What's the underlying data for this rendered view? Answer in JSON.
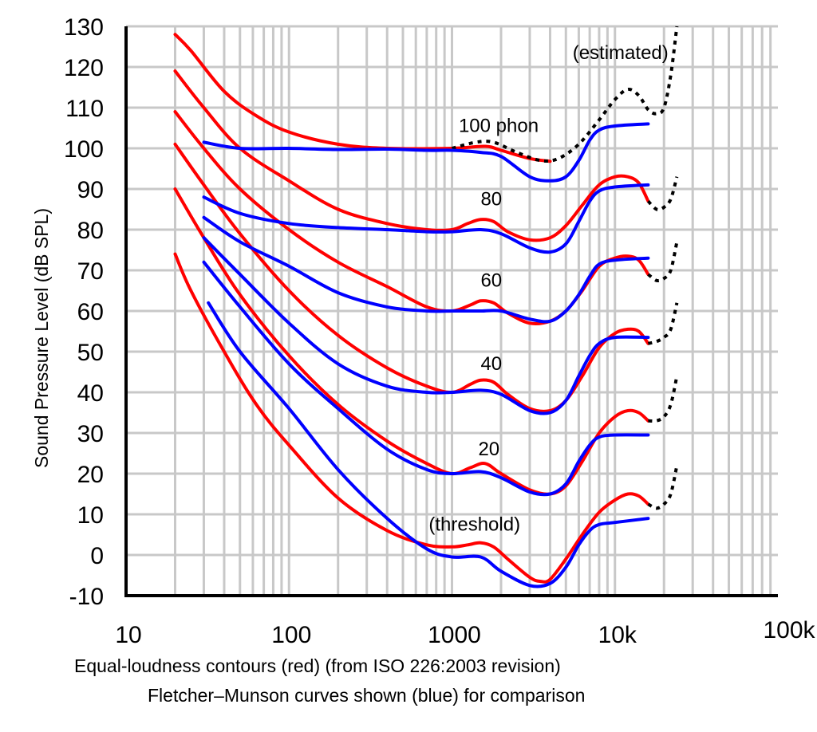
{
  "chart_data": {
    "type": "line",
    "xscale": "log",
    "xlim": [
      10,
      100000
    ],
    "ylim": [
      -10,
      130
    ],
    "grid": true,
    "ylabel": "Sound Pressure Level (dB SPL)",
    "caption_line1": "Equal-loudness contours (red) (from ISO 226:2003 revision)",
    "caption_line2": "Fletcher–Munson curves shown (blue) for comparison",
    "x_tick_labels": [
      {
        "value": 10,
        "label": "10"
      },
      {
        "value": 100,
        "label": "100"
      },
      {
        "value": 1000,
        "label": "1000"
      },
      {
        "value": 10000,
        "label": "10k"
      },
      {
        "value": 100000,
        "label": "100k"
      }
    ],
    "y_tick_labels": [
      {
        "value": 130,
        "label": "130"
      },
      {
        "value": 120,
        "label": "120"
      },
      {
        "value": 110,
        "label": "110"
      },
      {
        "value": 100,
        "label": "100"
      },
      {
        "value": 90,
        "label": "90"
      },
      {
        "value": 80,
        "label": "80"
      },
      {
        "value": 70,
        "label": "70"
      },
      {
        "value": 60,
        "label": "60"
      },
      {
        "value": 50,
        "label": "50"
      },
      {
        "value": 40,
        "label": "40"
      },
      {
        "value": 30,
        "label": "30"
      },
      {
        "value": 20,
        "label": "20"
      },
      {
        "value": 10,
        "label": "10"
      },
      {
        "value": 0,
        "label": "0"
      },
      {
        "value": -10,
        "label": "-10"
      }
    ],
    "annotations": [
      {
        "text": "(estimated)",
        "x": 5500,
        "y": 122
      },
      {
        "text": "100 phon",
        "x": 1100,
        "y": 104
      },
      {
        "text": "80",
        "x": 1500,
        "y": 86
      },
      {
        "text": "60",
        "x": 1500,
        "y": 66
      },
      {
        "text": "40",
        "x": 1500,
        "y": 45.5
      },
      {
        "text": "20",
        "x": 1450,
        "y": 24.5
      },
      {
        "text": "(threshold)",
        "x": 720,
        "y": 6
      }
    ],
    "colors": {
      "iso": "#ff0000",
      "fletcher": "#0000ff",
      "estimated": "#000000"
    },
    "series": [
      {
        "group": "iso",
        "level": 100,
        "points": [
          [
            20,
            128
          ],
          [
            25,
            124
          ],
          [
            40,
            114
          ],
          [
            63,
            108
          ],
          [
            100,
            104
          ],
          [
            200,
            101
          ],
          [
            400,
            100
          ],
          [
            1000,
            100
          ],
          [
            1600,
            100.5
          ],
          [
            2000,
            99.5
          ],
          [
            3000,
            97.5
          ],
          [
            4000,
            96.8
          ]
        ]
      },
      {
        "group": "estimated",
        "level": 100,
        "points": [
          [
            1000,
            100
          ],
          [
            1400,
            101.5
          ],
          [
            1800,
            101.5
          ],
          [
            2500,
            99
          ],
          [
            3500,
            97
          ],
          [
            4500,
            97.5
          ],
          [
            6000,
            101
          ],
          [
            8000,
            107
          ],
          [
            10000,
            112
          ],
          [
            12000,
            114.5
          ],
          [
            14000,
            113
          ],
          [
            16000,
            109.5
          ],
          [
            18000,
            108.5
          ],
          [
            20000,
            110
          ],
          [
            22000,
            118
          ],
          [
            24000,
            130
          ]
        ]
      },
      {
        "group": "iso",
        "level": 80,
        "points": [
          [
            20,
            119
          ],
          [
            30,
            110
          ],
          [
            50,
            100
          ],
          [
            100,
            92
          ],
          [
            200,
            85
          ],
          [
            400,
            81.5
          ],
          [
            700,
            80
          ],
          [
            1000,
            80
          ],
          [
            1250,
            81.5
          ],
          [
            1500,
            82.5
          ],
          [
            1800,
            82
          ],
          [
            2200,
            79.5
          ],
          [
            3000,
            77.5
          ],
          [
            4000,
            78
          ],
          [
            5000,
            81
          ],
          [
            6300,
            86
          ],
          [
            8000,
            91
          ],
          [
            10000,
            93
          ],
          [
            12000,
            93
          ],
          [
            14000,
            91.5
          ],
          [
            16000,
            87
          ]
        ]
      },
      {
        "group": "estimated",
        "level": 80,
        "points": [
          [
            16000,
            87
          ],
          [
            18000,
            85
          ],
          [
            20000,
            85.5
          ],
          [
            22000,
            87.5
          ],
          [
            24000,
            93
          ]
        ]
      },
      {
        "group": "iso",
        "level": 60,
        "points": [
          [
            20,
            109
          ],
          [
            30,
            100
          ],
          [
            50,
            90
          ],
          [
            100,
            80
          ],
          [
            200,
            72
          ],
          [
            400,
            66
          ],
          [
            700,
            61
          ],
          [
            1000,
            60
          ],
          [
            1300,
            61.5
          ],
          [
            1500,
            62.5
          ],
          [
            1800,
            62
          ],
          [
            2200,
            59.5
          ],
          [
            3000,
            57
          ],
          [
            4000,
            57.5
          ],
          [
            5000,
            60
          ],
          [
            6300,
            65
          ],
          [
            8000,
            71
          ],
          [
            10000,
            73
          ],
          [
            12000,
            73.5
          ],
          [
            14000,
            72.5
          ],
          [
            16000,
            69
          ]
        ]
      },
      {
        "group": "estimated",
        "level": 60,
        "points": [
          [
            16000,
            69
          ],
          [
            18000,
            67.5
          ],
          [
            20000,
            68
          ],
          [
            22000,
            70
          ],
          [
            24000,
            77
          ]
        ]
      },
      {
        "group": "iso",
        "level": 40,
        "points": [
          [
            20,
            101
          ],
          [
            30,
            91
          ],
          [
            50,
            79
          ],
          [
            100,
            65
          ],
          [
            200,
            54
          ],
          [
            400,
            46
          ],
          [
            700,
            41.5
          ],
          [
            1000,
            40
          ],
          [
            1300,
            42
          ],
          [
            1500,
            43
          ],
          [
            1800,
            42.5
          ],
          [
            2200,
            39.5
          ],
          [
            3000,
            36
          ],
          [
            4000,
            35.5
          ],
          [
            5000,
            38
          ],
          [
            6300,
            44
          ],
          [
            8000,
            51
          ],
          [
            10000,
            54.5
          ],
          [
            12000,
            55.5
          ],
          [
            14000,
            55
          ],
          [
            16000,
            52
          ]
        ]
      },
      {
        "group": "estimated",
        "level": 40,
        "points": [
          [
            16000,
            52
          ],
          [
            18000,
            52.5
          ],
          [
            20000,
            53.5
          ],
          [
            22000,
            55.5
          ],
          [
            24000,
            62
          ]
        ]
      },
      {
        "group": "iso",
        "level": 20,
        "points": [
          [
            20,
            90
          ],
          [
            30,
            78
          ],
          [
            50,
            64
          ],
          [
            100,
            49
          ],
          [
            200,
            37
          ],
          [
            400,
            28
          ],
          [
            700,
            22.5
          ],
          [
            1000,
            20
          ],
          [
            1300,
            21.5
          ],
          [
            1600,
            22.5
          ],
          [
            2000,
            20
          ],
          [
            3000,
            16
          ],
          [
            4000,
            15
          ],
          [
            5000,
            17
          ],
          [
            6300,
            23
          ],
          [
            8000,
            30
          ],
          [
            10000,
            34
          ],
          [
            12000,
            35.5
          ],
          [
            14000,
            35
          ],
          [
            16000,
            33
          ]
        ]
      },
      {
        "group": "estimated",
        "level": 20,
        "points": [
          [
            16000,
            33
          ],
          [
            18000,
            33
          ],
          [
            20000,
            34
          ],
          [
            22000,
            37
          ],
          [
            24000,
            44
          ]
        ]
      },
      {
        "group": "iso",
        "level": 0,
        "points": [
          [
            20,
            74
          ],
          [
            25,
            65
          ],
          [
            40,
            50
          ],
          [
            63,
            37
          ],
          [
            100,
            27
          ],
          [
            200,
            14
          ],
          [
            400,
            6
          ],
          [
            700,
            2.5
          ],
          [
            1000,
            2
          ],
          [
            1250,
            2.5
          ],
          [
            1500,
            3
          ],
          [
            1800,
            2
          ],
          [
            2200,
            -1
          ],
          [
            3000,
            -5.5
          ],
          [
            3500,
            -6.5
          ],
          [
            4000,
            -6
          ],
          [
            5000,
            -1
          ],
          [
            6300,
            5
          ],
          [
            8000,
            10.5
          ],
          [
            10000,
            13.5
          ],
          [
            12000,
            15
          ],
          [
            14000,
            14.5
          ],
          [
            16000,
            12.5
          ]
        ]
      },
      {
        "group": "estimated",
        "level": 0,
        "points": [
          [
            16000,
            12.5
          ],
          [
            18000,
            11.5
          ],
          [
            20000,
            12.5
          ],
          [
            22000,
            15
          ],
          [
            24000,
            22
          ]
        ]
      },
      {
        "group": "fletcher",
        "level": 100,
        "points": [
          [
            30,
            101.5
          ],
          [
            50,
            100
          ],
          [
            100,
            100
          ],
          [
            200,
            99.7
          ],
          [
            400,
            99.8
          ],
          [
            700,
            99.5
          ],
          [
            1000,
            99.5
          ],
          [
            1500,
            99
          ],
          [
            2000,
            98
          ],
          [
            3000,
            93
          ],
          [
            4000,
            92
          ],
          [
            5000,
            93
          ],
          [
            6000,
            97
          ],
          [
            7000,
            102
          ],
          [
            8000,
            104.5
          ],
          [
            10000,
            105.5
          ],
          [
            16000,
            106
          ]
        ]
      },
      {
        "group": "fletcher",
        "level": 80,
        "points": [
          [
            30,
            88
          ],
          [
            50,
            84
          ],
          [
            100,
            81.5
          ],
          [
            200,
            80.5
          ],
          [
            400,
            80
          ],
          [
            700,
            79.5
          ],
          [
            1000,
            79.5
          ],
          [
            1500,
            80
          ],
          [
            2000,
            79
          ],
          [
            3000,
            75.5
          ],
          [
            4000,
            74.5
          ],
          [
            5000,
            76.5
          ],
          [
            6000,
            82
          ],
          [
            7000,
            87
          ],
          [
            8000,
            89.5
          ],
          [
            10000,
            90.5
          ],
          [
            16000,
            91
          ]
        ]
      },
      {
        "group": "fletcher",
        "level": 60,
        "points": [
          [
            30,
            83
          ],
          [
            50,
            77
          ],
          [
            100,
            71
          ],
          [
            200,
            64.5
          ],
          [
            400,
            61
          ],
          [
            700,
            60
          ],
          [
            1000,
            60
          ],
          [
            1500,
            60
          ],
          [
            2000,
            60
          ],
          [
            3000,
            58
          ],
          [
            4000,
            57.5
          ],
          [
            5000,
            60
          ],
          [
            6000,
            64
          ],
          [
            7000,
            68.5
          ],
          [
            8000,
            71.5
          ],
          [
            10000,
            72.5
          ],
          [
            16000,
            73
          ]
        ]
      },
      {
        "group": "fletcher",
        "level": 40,
        "points": [
          [
            30,
            78
          ],
          [
            50,
            69
          ],
          [
            100,
            57
          ],
          [
            200,
            47
          ],
          [
            400,
            41.5
          ],
          [
            700,
            40
          ],
          [
            1000,
            40
          ],
          [
            1500,
            40.5
          ],
          [
            2000,
            39.5
          ],
          [
            3000,
            35.5
          ],
          [
            4000,
            35
          ],
          [
            5000,
            38
          ],
          [
            6000,
            44
          ],
          [
            7000,
            49
          ],
          [
            8000,
            52
          ],
          [
            10000,
            53.5
          ],
          [
            16000,
            53.5
          ]
        ]
      },
      {
        "group": "fletcher",
        "level": 20,
        "points": [
          [
            30,
            72
          ],
          [
            50,
            61
          ],
          [
            100,
            47
          ],
          [
            200,
            36
          ],
          [
            400,
            26
          ],
          [
            700,
            21
          ],
          [
            1000,
            20
          ],
          [
            1500,
            20.5
          ],
          [
            2000,
            19
          ],
          [
            3000,
            15.5
          ],
          [
            4000,
            15
          ],
          [
            5000,
            17.5
          ],
          [
            6000,
            23
          ],
          [
            7000,
            27
          ],
          [
            8000,
            29
          ],
          [
            10000,
            29.5
          ],
          [
            16000,
            29.5
          ]
        ]
      },
      {
        "group": "fletcher",
        "level": 0,
        "points": [
          [
            32,
            62
          ],
          [
            50,
            50
          ],
          [
            100,
            36
          ],
          [
            200,
            21
          ],
          [
            400,
            9
          ],
          [
            700,
            1.5
          ],
          [
            1000,
            -0.5
          ],
          [
            1500,
            -0.5
          ],
          [
            2000,
            -4
          ],
          [
            3000,
            -7.5
          ],
          [
            4000,
            -7
          ],
          [
            5000,
            -3
          ],
          [
            6000,
            2.5
          ],
          [
            7000,
            6
          ],
          [
            8000,
            7.5
          ],
          [
            10000,
            8
          ],
          [
            16000,
            9
          ]
        ]
      }
    ]
  }
}
